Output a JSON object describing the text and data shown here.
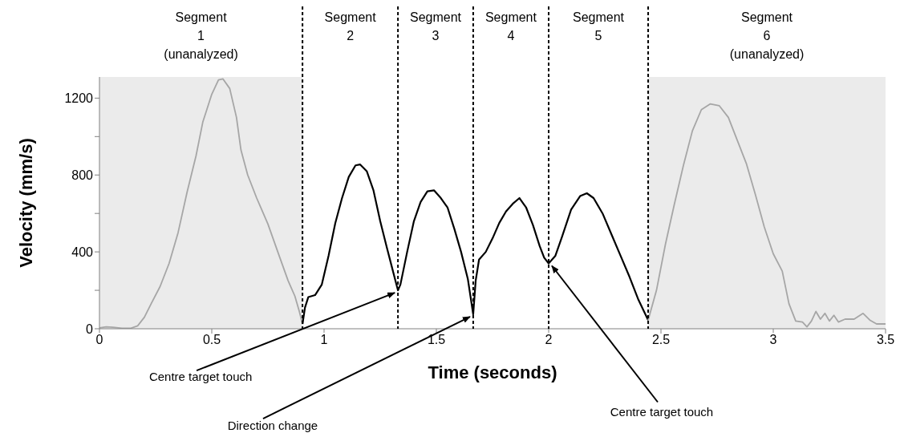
{
  "chart_data": {
    "type": "line",
    "xlabel": "Time (seconds)",
    "ylabel": "Velocity (mm/s)",
    "xlim": [
      0,
      3.5
    ],
    "xticks": [
      0,
      0.5,
      1,
      1.5,
      2,
      2.5,
      3,
      3.5
    ],
    "ylim": [
      0,
      1310
    ],
    "yticks": [
      0,
      {
        "value": 200,
        "label": null
      },
      400,
      {
        "value": 600,
        "label": null
      },
      800,
      {
        "value": 1000,
        "label": null
      },
      1200
    ],
    "marker": "none",
    "series": [
      {
        "color": "#a6a6a6",
        "x": [
          0,
          0.03,
          0.06,
          0.1,
          0.14,
          0.17,
          0.2,
          0.23,
          0.27,
          0.31,
          0.35,
          0.39,
          0.43,
          0.46,
          0.5,
          0.53,
          0.55,
          0.58,
          0.61,
          0.63,
          0.66,
          0.7,
          0.75,
          0.8,
          0.84,
          0.87,
          0.89,
          0.904
        ],
        "values": [
          5,
          10,
          8,
          3,
          3,
          15,
          60,
          130,
          220,
          340,
          500,
          710,
          900,
          1075,
          1220,
          1295,
          1300,
          1250,
          1100,
          930,
          800,
          680,
          545,
          380,
          250,
          170,
          90,
          25
        ]
      },
      {
        "color": "#000000",
        "x": [
          0.904,
          0.915,
          0.93,
          0.96,
          0.99,
          1.02,
          1.05,
          1.08,
          1.11,
          1.14,
          1.16,
          1.19,
          1.22,
          1.25,
          1.28,
          1.3,
          1.32,
          1.329,
          1.34,
          1.37,
          1.4,
          1.43,
          1.46,
          1.49,
          1.52,
          1.55,
          1.58,
          1.61,
          1.64,
          1.664,
          1.675,
          1.69,
          1.72,
          1.75,
          1.78,
          1.81,
          1.84,
          1.87,
          1.9,
          1.93,
          1.96,
          1.98,
          2.0,
          2.03,
          2.06,
          2.1,
          2.14,
          2.17,
          2.2,
          2.24,
          2.28,
          2.32,
          2.36,
          2.4,
          2.443
        ],
        "values": [
          25,
          110,
          165,
          175,
          230,
          380,
          550,
          680,
          790,
          850,
          855,
          820,
          720,
          560,
          420,
          330,
          240,
          200,
          230,
          400,
          560,
          660,
          715,
          720,
          680,
          630,
          520,
          400,
          260,
          75,
          250,
          360,
          400,
          470,
          550,
          610,
          650,
          680,
          630,
          540,
          430,
          370,
          340,
          380,
          480,
          620,
          690,
          705,
          680,
          600,
          490,
          380,
          270,
          150,
          45
        ]
      },
      {
        "color": "#a6a6a6",
        "x": [
          2.443,
          2.48,
          2.52,
          2.56,
          2.6,
          2.64,
          2.68,
          2.72,
          2.76,
          2.8,
          2.84,
          2.88,
          2.92,
          2.96,
          3.0,
          3.04,
          3.07,
          3.1,
          3.13,
          3.15,
          3.17,
          3.19,
          3.21,
          3.23,
          3.25,
          3.27,
          3.29,
          3.32,
          3.36,
          3.4,
          3.43,
          3.46,
          3.5
        ],
        "values": [
          45,
          200,
          440,
          650,
          850,
          1030,
          1140,
          1170,
          1160,
          1100,
          980,
          860,
          700,
          530,
          390,
          300,
          130,
          40,
          35,
          10,
          40,
          90,
          50,
          80,
          40,
          70,
          35,
          50,
          50,
          80,
          45,
          25,
          25
        ]
      }
    ],
    "bands": [
      {
        "axis": "x",
        "from": 0,
        "to": 0.904,
        "label": "Segment\n1\n(unanalyzed)",
        "color": "#ebebeb"
      },
      {
        "axis": "x",
        "from": 2.443,
        "to": 3.5,
        "label": "Segment\n6\n(unanalyzed)",
        "color": "#ebebeb"
      }
    ],
    "ref_lines": [
      {
        "axis": "x",
        "value": 0.904,
        "line_style": "dashed",
        "color": "#000000"
      },
      {
        "axis": "x",
        "value": 1.329,
        "line_style": "dashed",
        "color": "#000000"
      },
      {
        "axis": "x",
        "value": 1.664,
        "line_style": "dashed",
        "color": "#000000"
      },
      {
        "axis": "x",
        "value": 2.0,
        "line_style": "dashed",
        "color": "#000000"
      },
      {
        "axis": "x",
        "value": 2.443,
        "line_style": "dashed",
        "color": "#000000"
      }
    ],
    "annotations": [
      "Segment\n2",
      "Segment\n3",
      "Segment\n4",
      "Segment\n5",
      {
        "text": "Centre target touch",
        "x": 1.329,
        "y": 200
      },
      {
        "text": "Direction change",
        "x": 1.664,
        "y": 75
      },
      {
        "text": "Centre target touch",
        "x": 2.0,
        "y": 340
      }
    ]
  }
}
